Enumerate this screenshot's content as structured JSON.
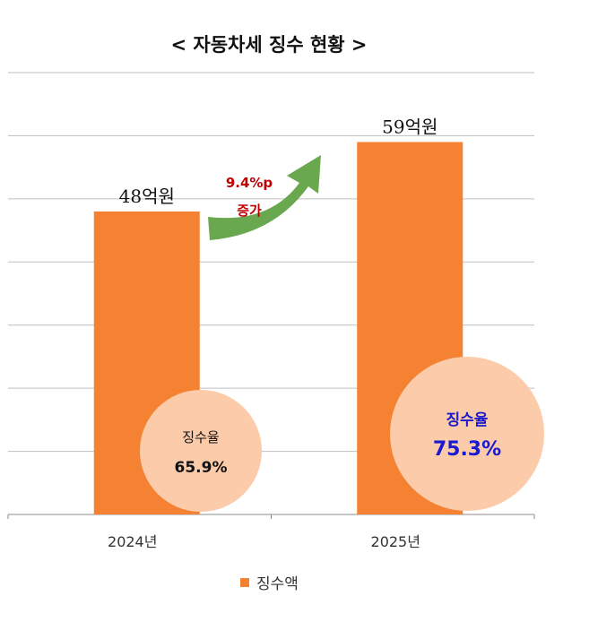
{
  "chart_data": {
    "type": "bar",
    "title": "< 자동차세 징수 현황 >",
    "categories": [
      "2024년",
      "2025년"
    ],
    "series": [
      {
        "name": "징수액",
        "values": [
          48,
          59
        ]
      }
    ],
    "value_labels": [
      "48억원",
      "59억원"
    ],
    "ylim": [
      0,
      70
    ],
    "grid": true,
    "legend": "bottom",
    "bar_color": "#F58233",
    "annotation": {
      "line1": "9.4%p",
      "line2": "증가",
      "color": "#C00000",
      "arrow_color": "#6AA84F"
    },
    "rate_bubbles": [
      {
        "label": "징수율",
        "value": "65.9%",
        "color": "#111111"
      },
      {
        "label": "징수율",
        "value": "75.3%",
        "color": "#1A1AD0"
      }
    ],
    "bubble_fill": "#FBCBAA"
  }
}
